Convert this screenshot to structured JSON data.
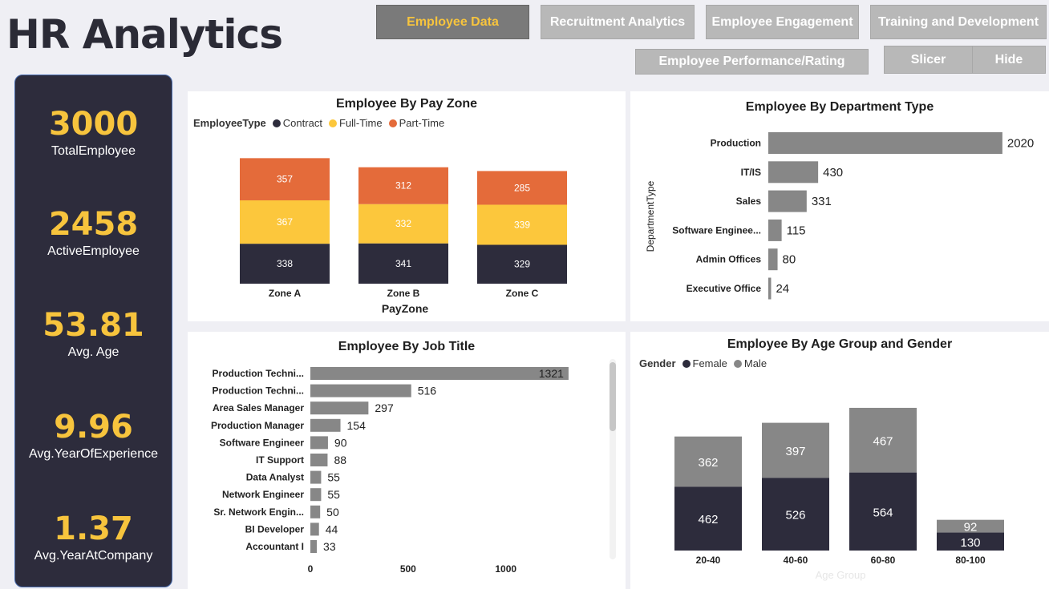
{
  "header": {
    "title": "HR Analytics"
  },
  "nav": {
    "employee_data": "Employee Data",
    "recruitment": "Recruitment Analytics",
    "engagement": "Employee Engagement",
    "training": "Training and Development",
    "performance": "Employee Performance/Rating",
    "slicer": "Slicer",
    "hide": "Hide"
  },
  "kpis": [
    {
      "value": "3000",
      "label": "TotalEmployee"
    },
    {
      "value": "2458",
      "label": "ActiveEmployee"
    },
    {
      "value": "53.81",
      "label": "Avg. Age"
    },
    {
      "value": "9.96",
      "label": "Avg.YearOfExperience"
    },
    {
      "value": "1.37",
      "label": "Avg.YearAtCompany"
    }
  ],
  "colors": {
    "contract": "#2d2c3c",
    "fulltime": "#fcc73c",
    "parttime": "#e46b3a",
    "bar_gray": "#878787",
    "female": "#2d2c3c",
    "male": "#878787",
    "accent": "#f7c43d"
  },
  "chart_data": [
    {
      "type": "bar",
      "stacked": true,
      "title": "Employee By Pay Zone",
      "legend_title": "EmployeeType",
      "xlabel": "PayZone",
      "categories": [
        "Zone A",
        "Zone B",
        "Zone C"
      ],
      "series": [
        {
          "name": "Contract",
          "values": [
            338,
            341,
            329
          ]
        },
        {
          "name": "Full-Time",
          "values": [
            367,
            332,
            339
          ]
        },
        {
          "name": "Part-Time",
          "values": [
            357,
            312,
            285
          ]
        }
      ]
    },
    {
      "type": "bar",
      "orientation": "horizontal",
      "title": "Employee By Department Type",
      "ylabel": "DepartmentType",
      "categories": [
        "Production",
        "IT/IS",
        "Sales",
        "Software Enginee...",
        "Admin Offices",
        "Executive Office"
      ],
      "values": [
        2020,
        430,
        331,
        115,
        80,
        24
      ]
    },
    {
      "type": "bar",
      "orientation": "horizontal",
      "title": "Employee By Job Title",
      "categories": [
        "Production Techni...",
        "Production Techni...",
        "Area Sales Manager",
        "Production Manager",
        "Software Engineer",
        "IT Support",
        "Data Analyst",
        "Network Engineer",
        "Sr. Network Engin...",
        "BI Developer",
        "Accountant I"
      ],
      "values": [
        1321,
        516,
        297,
        154,
        90,
        88,
        55,
        55,
        50,
        44,
        33
      ],
      "xticks": [
        "0",
        "500",
        "1000"
      ],
      "xlim": [
        0,
        1321
      ]
    },
    {
      "type": "bar",
      "stacked": true,
      "title": "Employee By Age Group and Gender",
      "legend_title": "Gender",
      "xlabel": "Age Group",
      "categories": [
        "20-40",
        "40-60",
        "60-80",
        "80-100"
      ],
      "series": [
        {
          "name": "Female",
          "values": [
            462,
            526,
            564,
            130
          ]
        },
        {
          "name": "Male",
          "values": [
            362,
            397,
            467,
            92
          ]
        }
      ]
    }
  ]
}
